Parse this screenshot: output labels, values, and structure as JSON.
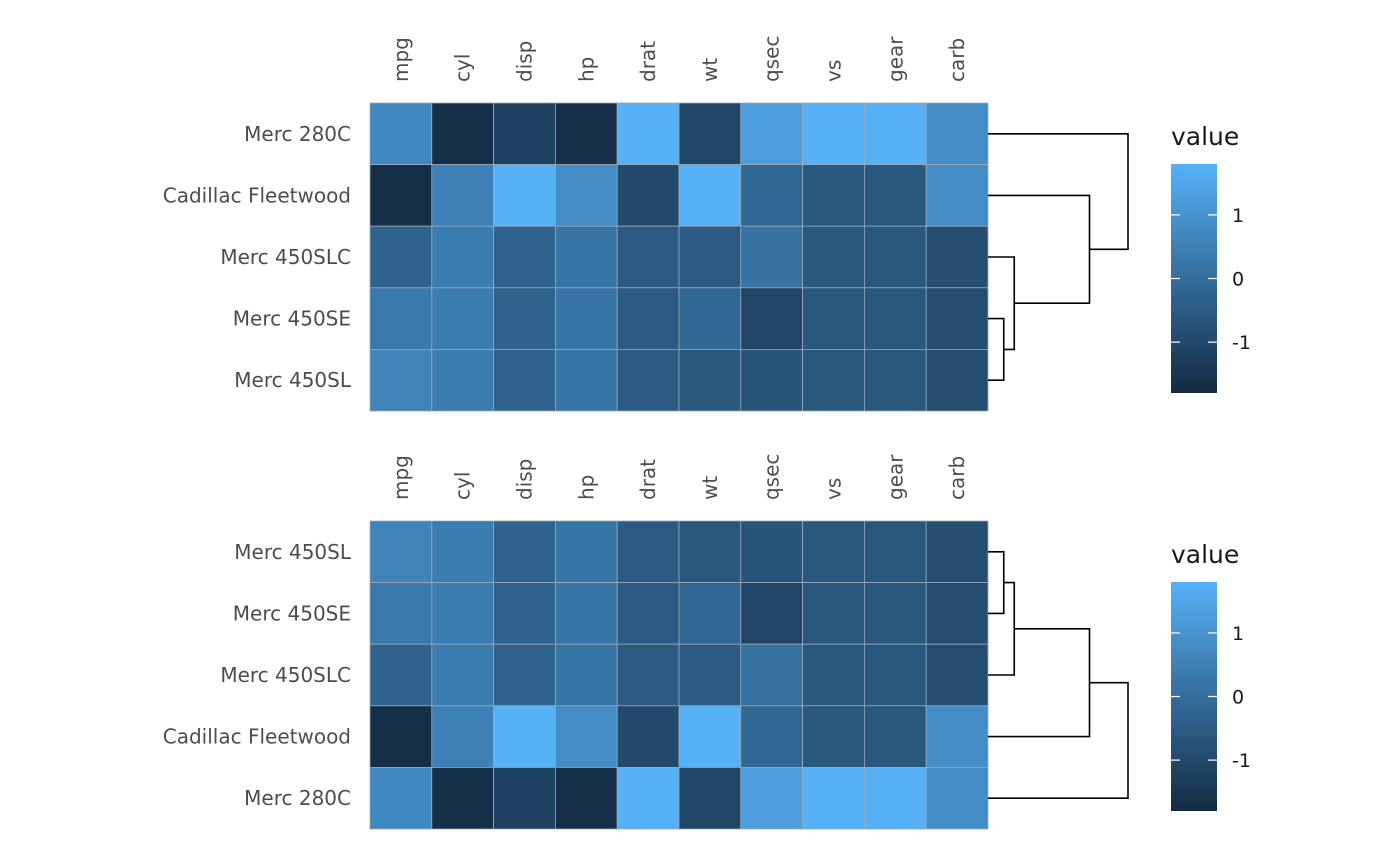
{
  "chart_data": [
    {
      "type": "heatmap",
      "columns": [
        "mpg",
        "cyl",
        "disp",
        "hp",
        "drat",
        "wt",
        "qsec",
        "vs",
        "gear",
        "carb"
      ],
      "rows": [
        "Merc 280C",
        "Cadillac Fleetwood",
        "Merc 450SLC",
        "Merc 450SE",
        "Merc 450SL"
      ],
      "values": [
        [
          0.7,
          -1.7,
          -1.2,
          -1.7,
          1.8,
          -1.1,
          1.3,
          1.8,
          1.8,
          0.8
        ],
        [
          -1.7,
          0.5,
          1.8,
          0.8,
          -1.0,
          1.8,
          -0.2,
          -0.6,
          -0.6,
          0.8
        ],
        [
          -0.3,
          0.4,
          -0.3,
          0.2,
          -0.5,
          -0.5,
          0.1,
          -0.6,
          -0.6,
          -0.9
        ],
        [
          0.3,
          0.4,
          -0.3,
          0.2,
          -0.5,
          -0.2,
          -1.1,
          -0.6,
          -0.6,
          -0.9
        ],
        [
          0.6,
          0.4,
          -0.3,
          0.2,
          -0.5,
          -0.6,
          -0.7,
          -0.6,
          -0.6,
          -0.9
        ]
      ],
      "dendrogram": "((Merc 280C, (Cadillac Fleetwood, (Merc 450SLC, (Merc 450SE, Merc 450SL)))))",
      "legend": {
        "title": "value",
        "ticks": [
          1,
          0,
          -1
        ],
        "tick_labels": [
          "1",
          "0",
          "-1"
        ],
        "range": [
          -1.8,
          1.8
        ]
      },
      "colors": {
        "low": "#132B43",
        "high": "#56B1F7"
      }
    },
    {
      "type": "heatmap",
      "columns": [
        "mpg",
        "cyl",
        "disp",
        "hp",
        "drat",
        "wt",
        "qsec",
        "vs",
        "gear",
        "carb"
      ],
      "rows": [
        "Merc 450SL",
        "Merc 450SE",
        "Merc 450SLC",
        "Cadillac Fleetwood",
        "Merc 280C"
      ],
      "values": [
        [
          0.6,
          0.4,
          -0.3,
          0.2,
          -0.5,
          -0.6,
          -0.7,
          -0.6,
          -0.6,
          -0.9
        ],
        [
          0.3,
          0.4,
          -0.3,
          0.2,
          -0.5,
          -0.2,
          -1.1,
          -0.6,
          -0.6,
          -0.9
        ],
        [
          -0.3,
          0.4,
          -0.3,
          0.2,
          -0.5,
          -0.5,
          0.1,
          -0.6,
          -0.6,
          -0.9
        ],
        [
          -1.7,
          0.5,
          1.8,
          0.8,
          -1.0,
          1.8,
          -0.2,
          -0.6,
          -0.6,
          0.8
        ],
        [
          0.7,
          -1.7,
          -1.2,
          -1.7,
          1.8,
          -1.1,
          1.3,
          1.8,
          1.8,
          0.8
        ]
      ],
      "dendrogram": "((((Merc 450SL, Merc 450SE), Merc 450SLC), Cadillac Fleetwood), Merc 280C)",
      "legend": {
        "title": "value",
        "ticks": [
          1,
          0,
          -1
        ],
        "tick_labels": [
          "1",
          "0",
          "-1"
        ],
        "range": [
          -1.8,
          1.8
        ]
      },
      "colors": {
        "low": "#132B43",
        "high": "#56B1F7"
      }
    }
  ]
}
